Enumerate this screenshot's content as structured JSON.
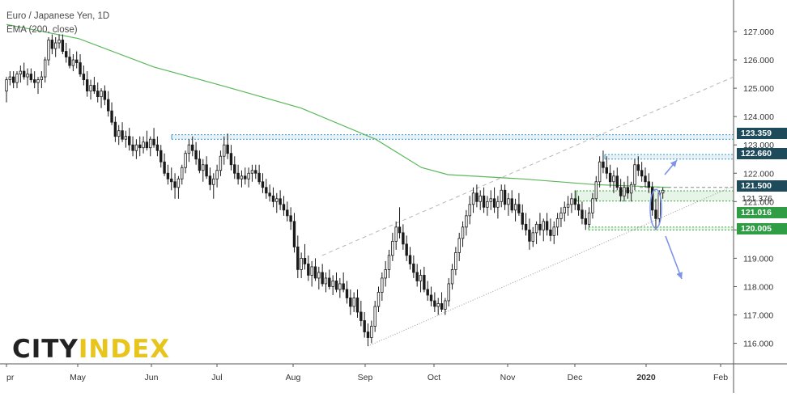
{
  "header": {
    "title": "Euro / Japanese Yen, 1D",
    "indicator": "EMA (200, close)"
  },
  "logo": {
    "part1": "CITY",
    "part2": "INDEX"
  },
  "colors": {
    "candle": "#1a1a1a",
    "ema": "#5bb85b",
    "zone_blue": "#3c96c8",
    "zone_green": "#3aa845",
    "trendline": "#999999",
    "arrow": "#7b93e8",
    "tag_dark": "#1d4b5c",
    "tag_green": "#2e9d43"
  },
  "chart_data": {
    "type": "candlestick",
    "instrument": "EURJPY",
    "ylim": [
      115.4,
      127.6
    ],
    "y_ticks": [
      "116.000",
      "117.000",
      "118.000",
      "119.000",
      "120.000",
      "121.000",
      "122.000",
      "123.000",
      "124.000",
      "125.000",
      "126.000",
      "127.000"
    ],
    "x_ticks": [
      "pr",
      "May",
      "Jun",
      "Jul",
      "Aug",
      "Sep",
      "Oct",
      "Nov",
      "Dec",
      "2020",
      "Feb"
    ],
    "price_labels": [
      {
        "text": "123.359",
        "style": "dark"
      },
      {
        "text": "122.660",
        "style": "dark"
      },
      {
        "text": "121.500",
        "style": "dark"
      },
      {
        "text": "121.376",
        "style": "plain"
      },
      {
        "text": "121.016",
        "style": "green"
      },
      {
        "text": "120.005",
        "style": "green"
      }
    ],
    "ema_200": [
      {
        "date": "2019-04-01",
        "value": 127.25
      },
      {
        "date": "2019-05-01",
        "value": 126.75
      },
      {
        "date": "2019-06-01",
        "value": 125.75
      },
      {
        "date": "2019-07-01",
        "value": 125.05
      },
      {
        "date": "2019-08-01",
        "value": 124.3
      },
      {
        "date": "2019-09-01",
        "value": 123.2
      },
      {
        "date": "2019-09-20",
        "value": 122.2
      },
      {
        "date": "2019-10-01",
        "value": 121.95
      },
      {
        "date": "2019-11-01",
        "value": 121.8
      },
      {
        "date": "2019-12-01",
        "value": 121.6
      },
      {
        "date": "2020-01-01",
        "value": 121.5
      }
    ],
    "levels": [
      {
        "name": "resistance-zone-1",
        "from": 123.2,
        "to": 123.36
      },
      {
        "name": "resistance-zone-2",
        "from": 122.5,
        "to": 122.66
      },
      {
        "name": "pivot",
        "value": 121.5
      },
      {
        "name": "support-zone-1",
        "from": 121.02,
        "to": 121.38
      },
      {
        "name": "support-zone-2",
        "from": 120.0,
        "to": 120.1
      }
    ],
    "candles": [
      [
        0,
        124.9,
        125.4,
        124.5,
        125.3
      ],
      [
        1,
        125.3,
        125.6,
        125.1,
        125.4
      ],
      [
        2,
        125.4,
        125.6,
        125.0,
        125.2
      ],
      [
        3,
        125.2,
        125.6,
        125.0,
        125.5
      ],
      [
        4,
        125.5,
        125.8,
        125.2,
        125.6
      ],
      [
        5,
        125.6,
        125.9,
        125.3,
        125.4
      ],
      [
        6,
        125.4,
        125.7,
        125.1,
        125.5
      ],
      [
        7,
        125.5,
        125.7,
        125.2,
        125.3
      ],
      [
        8,
        125.3,
        125.6,
        125.0,
        125.2
      ],
      [
        9,
        125.2,
        125.4,
        124.8,
        125.3
      ],
      [
        10,
        125.3,
        125.6,
        125.0,
        125.4
      ],
      [
        11,
        125.4,
        126.1,
        125.2,
        126.0
      ],
      [
        12,
        126.0,
        126.8,
        125.8,
        126.7
      ],
      [
        13,
        126.7,
        126.9,
        126.2,
        126.4
      ],
      [
        14,
        126.4,
        126.8,
        126.1,
        126.6
      ],
      [
        15,
        126.6,
        126.9,
        126.4,
        126.7
      ],
      [
        16,
        126.7,
        126.9,
        126.2,
        126.3
      ],
      [
        17,
        126.3,
        126.6,
        125.9,
        126.1
      ],
      [
        18,
        126.1,
        126.4,
        125.7,
        125.8
      ],
      [
        19,
        125.8,
        126.2,
        125.6,
        126.0
      ],
      [
        20,
        126.0,
        126.3,
        125.7,
        125.9
      ],
      [
        21,
        125.9,
        126.2,
        125.4,
        125.5
      ],
      [
        22,
        125.5,
        125.8,
        125.1,
        125.3
      ],
      [
        23,
        125.3,
        125.6,
        124.7,
        124.9
      ],
      [
        24,
        124.9,
        125.3,
        124.6,
        125.1
      ],
      [
        25,
        125.1,
        125.4,
        124.8,
        124.9
      ],
      [
        26,
        124.9,
        125.2,
        124.5,
        124.7
      ],
      [
        27,
        124.7,
        125.0,
        124.3,
        124.9
      ],
      [
        28,
        124.9,
        125.1,
        124.4,
        124.6
      ],
      [
        29,
        124.6,
        124.9,
        124.0,
        124.2
      ],
      [
        30,
        124.2,
        124.5,
        123.7,
        123.8
      ],
      [
        31,
        123.8,
        124.0,
        123.1,
        123.3
      ],
      [
        32,
        123.3,
        123.7,
        123.0,
        123.5
      ],
      [
        33,
        123.5,
        123.8,
        123.1,
        123.2
      ],
      [
        34,
        123.2,
        123.5,
        122.9,
        123.3
      ],
      [
        35,
        123.3,
        123.6,
        122.8,
        123.0
      ],
      [
        36,
        123.0,
        123.3,
        122.6,
        122.8
      ],
      [
        37,
        122.8,
        123.2,
        122.5,
        123.0
      ],
      [
        38,
        123.0,
        123.3,
        122.6,
        122.9
      ],
      [
        39,
        122.9,
        123.3,
        122.7,
        123.1
      ],
      [
        40,
        123.1,
        123.5,
        122.8,
        122.9
      ],
      [
        41,
        122.9,
        123.3,
        122.6,
        123.2
      ],
      [
        42,
        123.2,
        123.6,
        122.9,
        123.0
      ],
      [
        43,
        123.0,
        123.3,
        122.6,
        122.8
      ],
      [
        44,
        122.8,
        123.0,
        122.2,
        122.4
      ],
      [
        45,
        122.4,
        122.7,
        121.9,
        122.0
      ],
      [
        46,
        122.0,
        122.3,
        121.6,
        121.8
      ],
      [
        47,
        121.8,
        122.2,
        121.4,
        121.7
      ],
      [
        48,
        121.7,
        122.0,
        121.1,
        121.5
      ],
      [
        49,
        121.5,
        121.9,
        121.1,
        121.8
      ],
      [
        50,
        121.8,
        122.3,
        121.6,
        122.2
      ],
      [
        51,
        122.2,
        122.8,
        122.0,
        122.7
      ],
      [
        52,
        122.7,
        123.2,
        122.4,
        123.0
      ],
      [
        53,
        123.0,
        123.3,
        122.6,
        122.8
      ],
      [
        54,
        122.8,
        123.1,
        122.3,
        122.5
      ],
      [
        55,
        122.5,
        122.8,
        122.0,
        122.1
      ],
      [
        56,
        122.1,
        122.5,
        121.7,
        122.3
      ],
      [
        57,
        122.3,
        122.6,
        121.8,
        121.9
      ],
      [
        58,
        121.9,
        122.2,
        121.4,
        121.6
      ],
      [
        59,
        121.6,
        122.0,
        121.1,
        121.8
      ],
      [
        60,
        121.8,
        122.3,
        121.5,
        122.1
      ],
      [
        61,
        122.1,
        122.8,
        121.9,
        122.6
      ],
      [
        62,
        122.6,
        123.3,
        122.3,
        123.0
      ],
      [
        63,
        123.0,
        123.4,
        122.5,
        122.7
      ],
      [
        64,
        122.7,
        123.0,
        122.1,
        122.3
      ],
      [
        65,
        122.3,
        122.6,
        121.8,
        122.0
      ],
      [
        66,
        122.0,
        122.3,
        121.6,
        121.8
      ],
      [
        67,
        121.8,
        122.1,
        121.5,
        121.9
      ],
      [
        68,
        121.9,
        122.2,
        121.6,
        121.8
      ],
      [
        69,
        121.8,
        122.2,
        121.5,
        122.0
      ],
      [
        70,
        122.0,
        122.3,
        121.7,
        122.1
      ],
      [
        71,
        122.1,
        122.3,
        121.8,
        122.0
      ],
      [
        72,
        122.0,
        122.3,
        121.6,
        121.7
      ],
      [
        73,
        121.7,
        122.0,
        121.3,
        121.5
      ],
      [
        74,
        121.5,
        121.8,
        121.1,
        121.3
      ],
      [
        75,
        121.3,
        121.6,
        121.0,
        121.2
      ],
      [
        76,
        121.2,
        121.5,
        120.8,
        121.0
      ],
      [
        77,
        121.0,
        121.3,
        120.6,
        121.1
      ],
      [
        78,
        121.1,
        121.4,
        120.7,
        120.9
      ],
      [
        79,
        120.9,
        121.2,
        120.5,
        120.7
      ],
      [
        80,
        120.7,
        121.0,
        120.3,
        120.5
      ],
      [
        81,
        120.5,
        120.8,
        120.0,
        120.3
      ],
      [
        82,
        120.3,
        120.6,
        119.2,
        119.4
      ],
      [
        83,
        119.4,
        119.8,
        118.3,
        118.6
      ],
      [
        84,
        118.6,
        119.2,
        118.3,
        119.0
      ],
      [
        85,
        119.0,
        119.5,
        118.6,
        118.8
      ],
      [
        86,
        118.8,
        119.1,
        118.2,
        118.4
      ],
      [
        87,
        118.4,
        118.9,
        118.0,
        118.7
      ],
      [
        88,
        118.7,
        119.0,
        118.2,
        118.3
      ],
      [
        89,
        118.3,
        118.7,
        117.9,
        118.5
      ],
      [
        90,
        118.5,
        118.8,
        118.0,
        118.1
      ],
      [
        91,
        118.1,
        118.5,
        117.8,
        118.3
      ],
      [
        92,
        118.3,
        118.6,
        117.9,
        118.0
      ],
      [
        93,
        118.0,
        118.4,
        117.7,
        118.2
      ],
      [
        94,
        118.2,
        118.5,
        117.8,
        117.9
      ],
      [
        95,
        117.9,
        118.3,
        117.6,
        118.1
      ],
      [
        96,
        118.1,
        118.5,
        117.8,
        117.9
      ],
      [
        97,
        117.9,
        118.2,
        117.4,
        117.6
      ],
      [
        98,
        117.6,
        117.9,
        117.0,
        117.3
      ],
      [
        99,
        117.3,
        117.8,
        117.1,
        117.6
      ],
      [
        100,
        117.6,
        117.9,
        116.9,
        117.1
      ],
      [
        101,
        117.1,
        117.5,
        116.6,
        116.8
      ],
      [
        102,
        116.8,
        117.1,
        116.2,
        116.4
      ],
      [
        103,
        116.4,
        116.7,
        115.9,
        116.2
      ],
      [
        104,
        116.2,
        116.8,
        116.0,
        116.6
      ],
      [
        105,
        116.6,
        117.5,
        116.4,
        117.3
      ],
      [
        106,
        117.3,
        118.0,
        117.1,
        117.8
      ],
      [
        107,
        117.8,
        118.5,
        117.5,
        118.3
      ],
      [
        108,
        118.3,
        118.9,
        118.0,
        118.6
      ],
      [
        109,
        118.6,
        119.3,
        118.3,
        119.1
      ],
      [
        110,
        119.1,
        119.9,
        118.9,
        119.6
      ],
      [
        111,
        119.6,
        120.3,
        119.3,
        120.1
      ],
      [
        112,
        120.1,
        120.8,
        119.7,
        119.9
      ],
      [
        113,
        119.9,
        120.2,
        119.3,
        119.5
      ],
      [
        114,
        119.5,
        119.8,
        118.9,
        119.1
      ],
      [
        115,
        119.1,
        119.4,
        118.6,
        118.8
      ],
      [
        116,
        118.8,
        119.1,
        118.3,
        118.5
      ],
      [
        117,
        118.5,
        118.8,
        118.0,
        118.2
      ],
      [
        118,
        118.2,
        118.6,
        117.8,
        118.4
      ],
      [
        119,
        118.4,
        118.7,
        117.8,
        117.9
      ],
      [
        120,
        117.9,
        118.2,
        117.5,
        117.7
      ],
      [
        121,
        117.7,
        118.0,
        117.3,
        117.5
      ],
      [
        122,
        117.5,
        117.8,
        117.1,
        117.3
      ],
      [
        123,
        117.3,
        117.6,
        117.0,
        117.4
      ],
      [
        124,
        117.4,
        117.8,
        117.1,
        117.2
      ],
      [
        125,
        117.2,
        117.6,
        117.0,
        117.5
      ],
      [
        126,
        117.5,
        118.3,
        117.3,
        118.1
      ],
      [
        127,
        118.1,
        118.8,
        117.9,
        118.6
      ],
      [
        128,
        118.6,
        119.4,
        118.4,
        119.2
      ],
      [
        129,
        119.2,
        119.9,
        118.9,
        119.7
      ],
      [
        130,
        119.7,
        120.3,
        119.4,
        120.1
      ],
      [
        131,
        120.1,
        120.7,
        119.8,
        120.5
      ],
      [
        132,
        120.5,
        121.2,
        120.2,
        120.9
      ],
      [
        133,
        120.9,
        121.5,
        120.6,
        121.3
      ],
      [
        134,
        121.3,
        121.6,
        120.8,
        121.0
      ],
      [
        135,
        121.0,
        121.4,
        120.7,
        121.2
      ],
      [
        136,
        121.2,
        121.5,
        120.6,
        120.8
      ],
      [
        137,
        120.8,
        121.2,
        120.5,
        121.0
      ],
      [
        138,
        121.0,
        121.4,
        120.7,
        121.1
      ],
      [
        139,
        121.1,
        121.5,
        120.6,
        120.8
      ],
      [
        140,
        120.8,
        121.2,
        120.4,
        121.0
      ],
      [
        141,
        121.0,
        121.6,
        120.8,
        121.4
      ],
      [
        142,
        121.4,
        121.6,
        120.7,
        120.9
      ],
      [
        143,
        120.9,
        121.3,
        120.5,
        121.1
      ],
      [
        144,
        121.1,
        121.4,
        120.6,
        120.7
      ],
      [
        145,
        120.7,
        121.1,
        120.3,
        120.9
      ],
      [
        146,
        120.9,
        121.3,
        120.5,
        120.6
      ],
      [
        147,
        120.6,
        120.9,
        120.0,
        120.2
      ],
      [
        148,
        120.2,
        120.6,
        119.8,
        120.0
      ],
      [
        149,
        120.0,
        120.4,
        119.3,
        119.6
      ],
      [
        150,
        119.6,
        120.1,
        119.4,
        119.9
      ],
      [
        151,
        119.9,
        120.3,
        119.5,
        120.2
      ],
      [
        152,
        120.2,
        120.6,
        119.8,
        120.0
      ],
      [
        153,
        120.0,
        120.4,
        119.6,
        120.3
      ],
      [
        154,
        120.3,
        120.6,
        119.8,
        120.0
      ],
      [
        155,
        120.0,
        120.4,
        119.6,
        119.8
      ],
      [
        156,
        119.8,
        120.3,
        119.5,
        120.1
      ],
      [
        157,
        120.1,
        120.6,
        119.8,
        120.4
      ],
      [
        158,
        120.4,
        120.8,
        120.1,
        120.6
      ],
      [
        159,
        120.6,
        121.0,
        120.3,
        120.8
      ],
      [
        160,
        120.8,
        121.2,
        120.5,
        120.9
      ],
      [
        161,
        120.9,
        121.3,
        120.6,
        121.1
      ],
      [
        162,
        121.1,
        121.4,
        120.7,
        120.9
      ],
      [
        163,
        120.9,
        121.2,
        120.5,
        120.7
      ],
      [
        164,
        120.7,
        121.0,
        120.2,
        120.4
      ],
      [
        165,
        120.4,
        120.7,
        120.0,
        120.2
      ],
      [
        166,
        120.2,
        120.8,
        120.1,
        120.6
      ],
      [
        167,
        120.6,
        121.3,
        120.4,
        121.1
      ],
      [
        168,
        121.1,
        121.9,
        121.0,
        121.7
      ],
      [
        169,
        121.7,
        122.6,
        121.5,
        122.4
      ],
      [
        170,
        122.4,
        122.8,
        122.0,
        122.2
      ],
      [
        171,
        122.2,
        122.6,
        121.8,
        122.0
      ],
      [
        172,
        122.0,
        122.3,
        121.5,
        121.7
      ],
      [
        173,
        121.7,
        122.1,
        121.3,
        121.9
      ],
      [
        174,
        121.9,
        122.2,
        121.4,
        121.5
      ],
      [
        175,
        121.5,
        121.8,
        121.0,
        121.2
      ],
      [
        176,
        121.2,
        121.7,
        121.0,
        121.5
      ],
      [
        177,
        121.5,
        121.9,
        121.1,
        121.3
      ],
      [
        178,
        121.3,
        121.7,
        121.0,
        121.6
      ],
      [
        179,
        121.6,
        122.5,
        121.4,
        122.3
      ],
      [
        180,
        122.3,
        122.6,
        121.9,
        122.1
      ],
      [
        181,
        122.1,
        122.4,
        121.7,
        121.9
      ],
      [
        182,
        121.9,
        122.2,
        121.5,
        121.7
      ],
      [
        183,
        121.7,
        122.0,
        121.3,
        121.5
      ],
      [
        184,
        121.5,
        121.7,
        120.5,
        120.7
      ],
      [
        185,
        120.7,
        121.1,
        120.0,
        120.4
      ],
      [
        186,
        120.4,
        121.4,
        120.2,
        121.3
      ],
      [
        187,
        121.3,
        121.5,
        121.1,
        121.4
      ]
    ]
  }
}
